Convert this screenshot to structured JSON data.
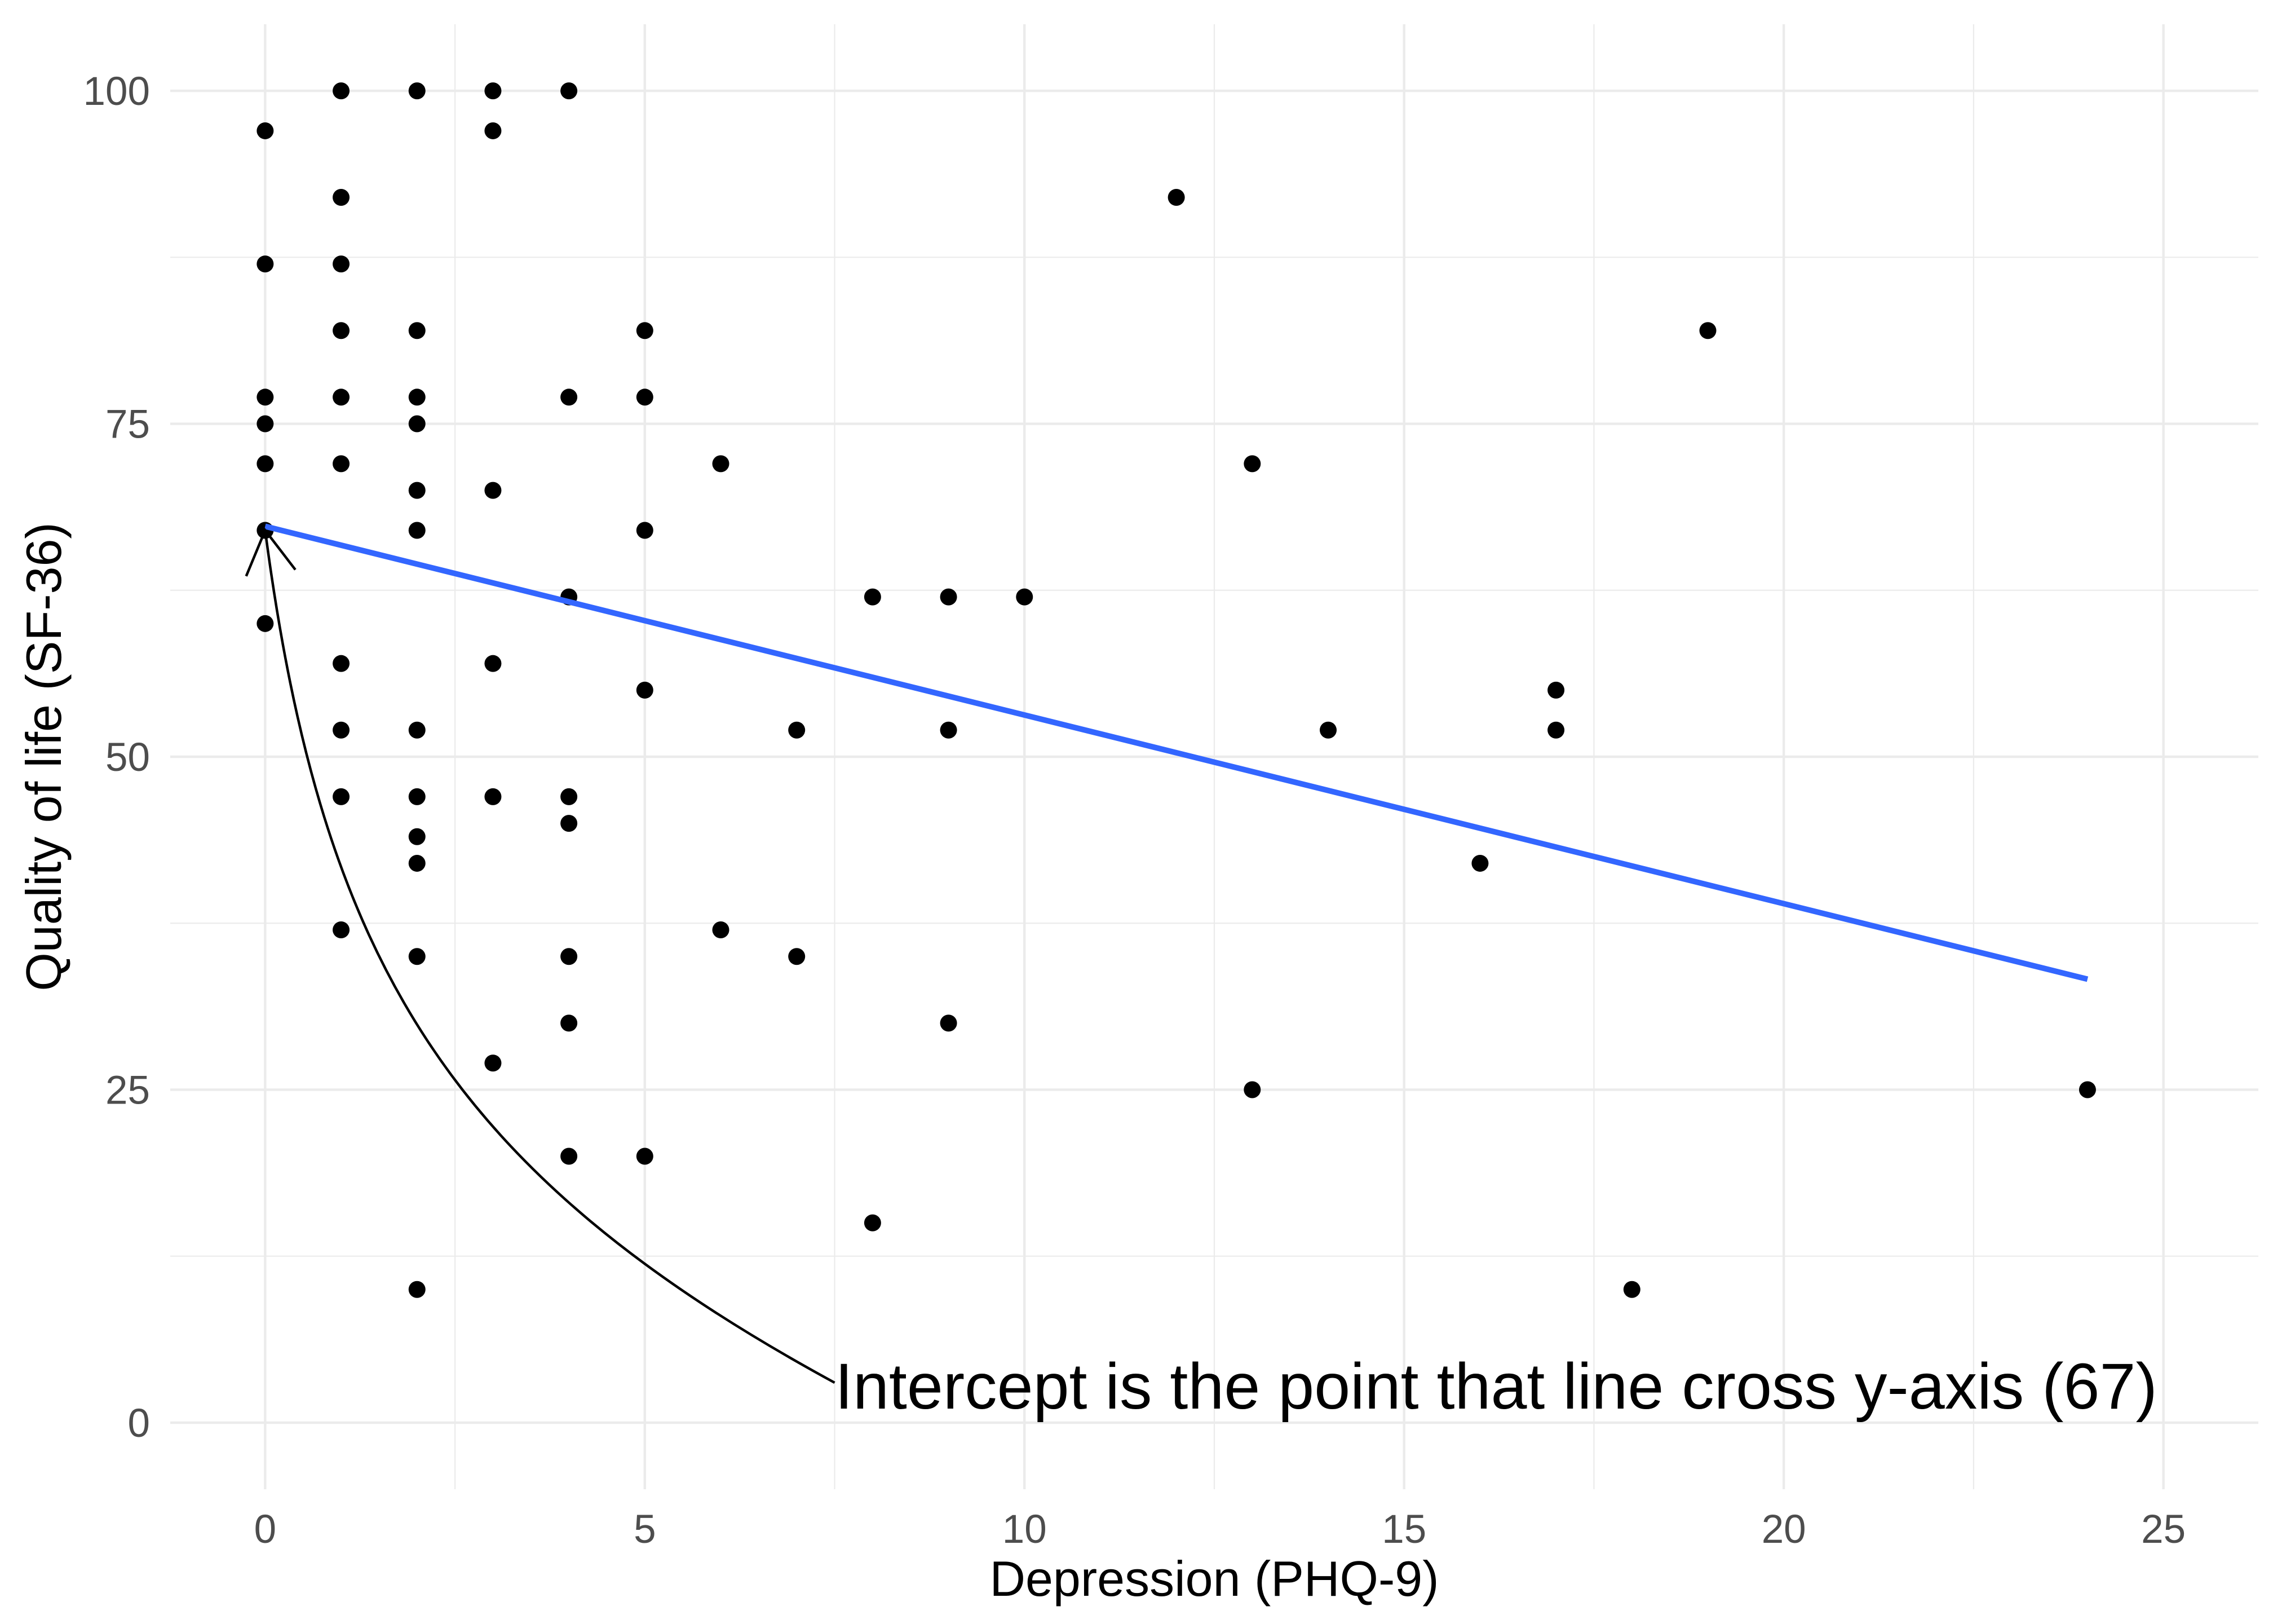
{
  "chart_data": {
    "type": "scatter",
    "xlabel": "Depression (PHQ-9)",
    "ylabel": "Quality of life (SF-36)",
    "xlim": [
      -1.25,
      26.25
    ],
    "ylim": [
      -5,
      105
    ],
    "xticks": [
      0,
      5,
      10,
      15,
      20,
      25
    ],
    "yticks": [
      0,
      25,
      50,
      75,
      100
    ],
    "grid": true,
    "series": [
      {
        "type": "scatter",
        "color": "#000000",
        "x": [
          0,
          0,
          0,
          0,
          0,
          0,
          0,
          1,
          1,
          1,
          1,
          1,
          1,
          1,
          1,
          1,
          1,
          2,
          2,
          2,
          2,
          2,
          2,
          2,
          2,
          2,
          2,
          2,
          2,
          3,
          3,
          3,
          3,
          3,
          3,
          4,
          4,
          4,
          4,
          4,
          4,
          4,
          4,
          5,
          5,
          5,
          5,
          5,
          6,
          6,
          7,
          7,
          8,
          8,
          9,
          9,
          9,
          10,
          12,
          13,
          13,
          14,
          16,
          17,
          17,
          18,
          19,
          24
        ],
        "y": [
          97,
          87,
          77,
          75,
          72,
          67,
          60,
          100,
          92,
          87,
          82,
          77,
          72,
          57,
          52,
          47,
          37,
          100,
          82,
          77,
          75,
          70,
          67,
          52,
          47,
          44,
          42,
          35,
          10,
          100,
          97,
          70,
          57,
          47,
          27,
          100,
          77,
          62,
          47,
          45,
          35,
          30,
          20,
          82,
          77,
          67,
          55,
          20,
          72,
          37,
          52,
          35,
          62,
          15,
          62,
          52,
          30,
          62,
          92,
          72,
          25,
          52,
          42,
          55,
          52,
          10,
          82,
          25
        ]
      },
      {
        "type": "line",
        "color": "#3366FF",
        "x": [
          0,
          24
        ],
        "y": [
          67.3,
          33.3
        ]
      }
    ],
    "annotations": [
      {
        "text": "Intercept is the point that line cross y-axis (67)"
      }
    ]
  }
}
